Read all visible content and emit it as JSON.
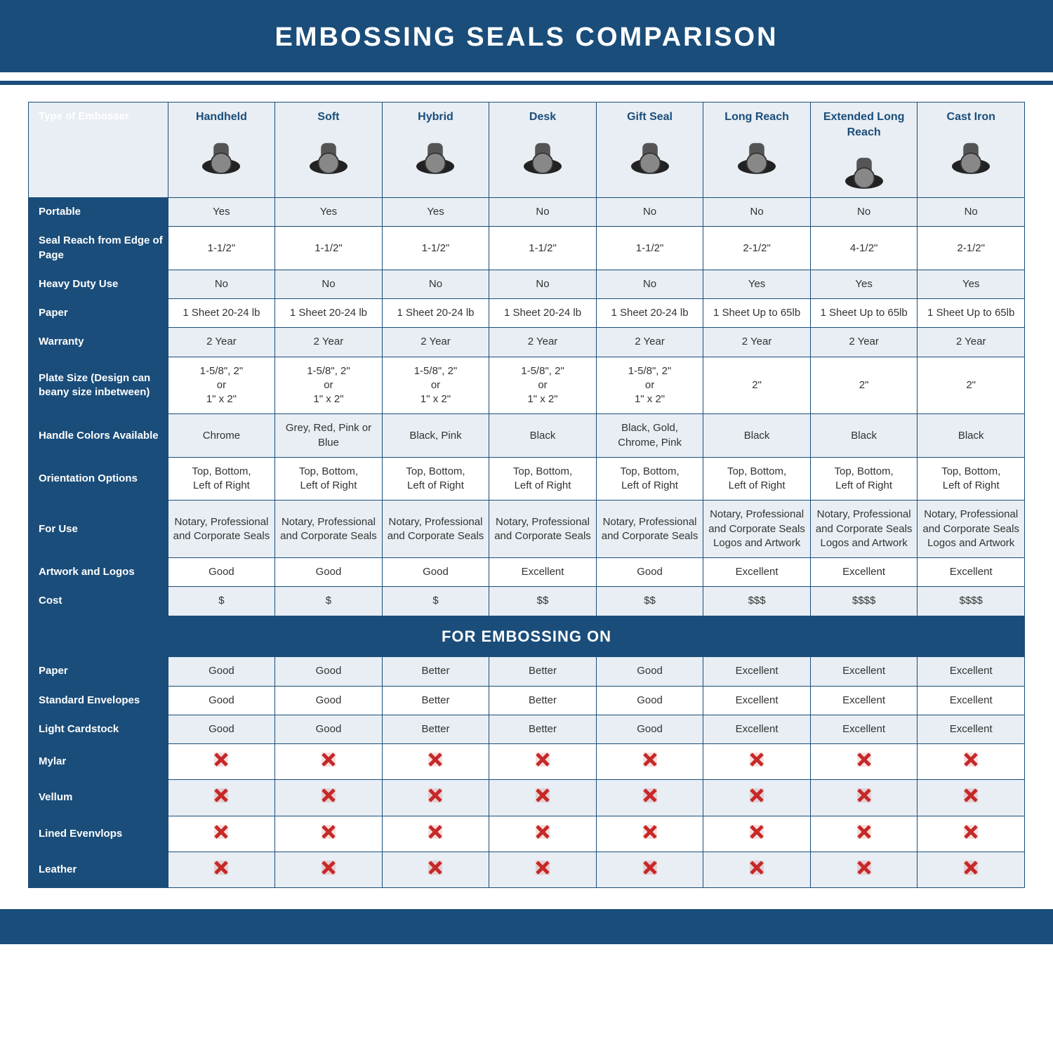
{
  "title": "EMBOSSING SEALS COMPARISON",
  "colors": {
    "brand": "#1a4d7a",
    "alt_row": "#e8eef3",
    "text": "#333333",
    "cross": "#c62828",
    "white": "#ffffff"
  },
  "columns": [
    "Handheld",
    "Soft",
    "Hybrid",
    "Desk",
    "Gift Seal",
    "Long Reach",
    "Extended Long Reach",
    "Cast Iron"
  ],
  "header_row_label": "Type of Embosser",
  "section2_title": "FOR EMBOSSING ON",
  "rows_section1": [
    {
      "label": "Portable",
      "alt": true,
      "values": [
        "Yes",
        "Yes",
        "Yes",
        "No",
        "No",
        "No",
        "No",
        "No"
      ]
    },
    {
      "label": "Seal Reach from Edge of Page",
      "alt": false,
      "values": [
        "1-1/2\"",
        "1-1/2\"",
        "1-1/2\"",
        "1-1/2\"",
        "1-1/2\"",
        "2-1/2\"",
        "4-1/2\"",
        "2-1/2\""
      ]
    },
    {
      "label": "Heavy Duty Use",
      "alt": true,
      "values": [
        "No",
        "No",
        "No",
        "No",
        "No",
        "Yes",
        "Yes",
        "Yes"
      ]
    },
    {
      "label": "Paper",
      "alt": false,
      "values": [
        "1 Sheet 20-24 lb",
        "1 Sheet 20-24 lb",
        "1 Sheet 20-24 lb",
        "1 Sheet 20-24 lb",
        "1 Sheet 20-24 lb",
        "1 Sheet Up to 65lb",
        "1 Sheet Up to 65lb",
        "1 Sheet Up to 65lb"
      ]
    },
    {
      "label": "Warranty",
      "alt": true,
      "values": [
        "2 Year",
        "2 Year",
        "2 Year",
        "2 Year",
        "2 Year",
        "2 Year",
        "2 Year",
        "2 Year"
      ]
    },
    {
      "label": "Plate Size (Design can beany size inbetween)",
      "alt": false,
      "values": [
        "1-5/8\", 2\"\nor\n1\" x 2\"",
        "1-5/8\", 2\"\nor\n1\" x 2\"",
        "1-5/8\", 2\"\nor\n1\" x 2\"",
        "1-5/8\", 2\"\nor\n1\" x 2\"",
        "1-5/8\", 2\"\nor\n1\" x 2\"",
        "2\"",
        "2\"",
        "2\""
      ]
    },
    {
      "label": "Handle Colors Available",
      "alt": true,
      "values": [
        "Chrome",
        "Grey, Red, Pink or Blue",
        "Black, Pink",
        "Black",
        "Black, Gold, Chrome, Pink",
        "Black",
        "Black",
        "Black"
      ]
    },
    {
      "label": "Orientation Options",
      "alt": false,
      "values": [
        "Top, Bottom,\nLeft of Right",
        "Top, Bottom,\nLeft of Right",
        "Top, Bottom,\nLeft of Right",
        "Top, Bottom,\nLeft of Right",
        "Top, Bottom,\nLeft of Right",
        "Top, Bottom,\nLeft of Right",
        "Top, Bottom,\nLeft of Right",
        "Top, Bottom,\nLeft of Right"
      ]
    },
    {
      "label": "For Use",
      "alt": true,
      "values": [
        "Notary, Professional and Corporate Seals",
        "Notary, Professional and Corporate Seals",
        "Notary, Professional and Corporate Seals",
        "Notary, Professional and Corporate Seals",
        "Notary, Professional and Corporate Seals",
        "Notary, Professional and Corporate Seals Logos and Artwork",
        "Notary, Professional and Corporate Seals Logos and Artwork",
        "Notary, Professional and Corporate Seals Logos and Artwork"
      ]
    },
    {
      "label": "Artwork and Logos",
      "alt": false,
      "values": [
        "Good",
        "Good",
        "Good",
        "Excellent",
        "Good",
        "Excellent",
        "Excellent",
        "Excellent"
      ]
    },
    {
      "label": "Cost",
      "alt": true,
      "values": [
        "$",
        "$",
        "$",
        "$$",
        "$$",
        "$$$",
        "$$$$",
        "$$$$"
      ]
    }
  ],
  "rows_section2": [
    {
      "label": "Paper",
      "alt": true,
      "type": "text",
      "values": [
        "Good",
        "Good",
        "Better",
        "Better",
        "Good",
        "Excellent",
        "Excellent",
        "Excellent"
      ]
    },
    {
      "label": "Standard Envelopes",
      "alt": false,
      "type": "text",
      "values": [
        "Good",
        "Good",
        "Better",
        "Better",
        "Good",
        "Excellent",
        "Excellent",
        "Excellent"
      ]
    },
    {
      "label": "Light Cardstock",
      "alt": true,
      "type": "text",
      "values": [
        "Good",
        "Good",
        "Better",
        "Better",
        "Good",
        "Excellent",
        "Excellent",
        "Excellent"
      ]
    },
    {
      "label": "Mylar",
      "alt": false,
      "type": "cross"
    },
    {
      "label": "Vellum",
      "alt": true,
      "type": "cross"
    },
    {
      "label": "Lined Evenvlops",
      "alt": false,
      "type": "cross"
    },
    {
      "label": "Leather",
      "alt": true,
      "type": "cross"
    }
  ],
  "table": {
    "type": "comparison-table",
    "label_col_width_pct": 14,
    "data_col_width_pct": 10.75,
    "header_bg": "#e8eef3",
    "label_bg": "#1a4d7a",
    "border_color": "#1a4d7a",
    "font_size_body": 15,
    "font_size_header": 16,
    "title_fontsize": 38
  }
}
